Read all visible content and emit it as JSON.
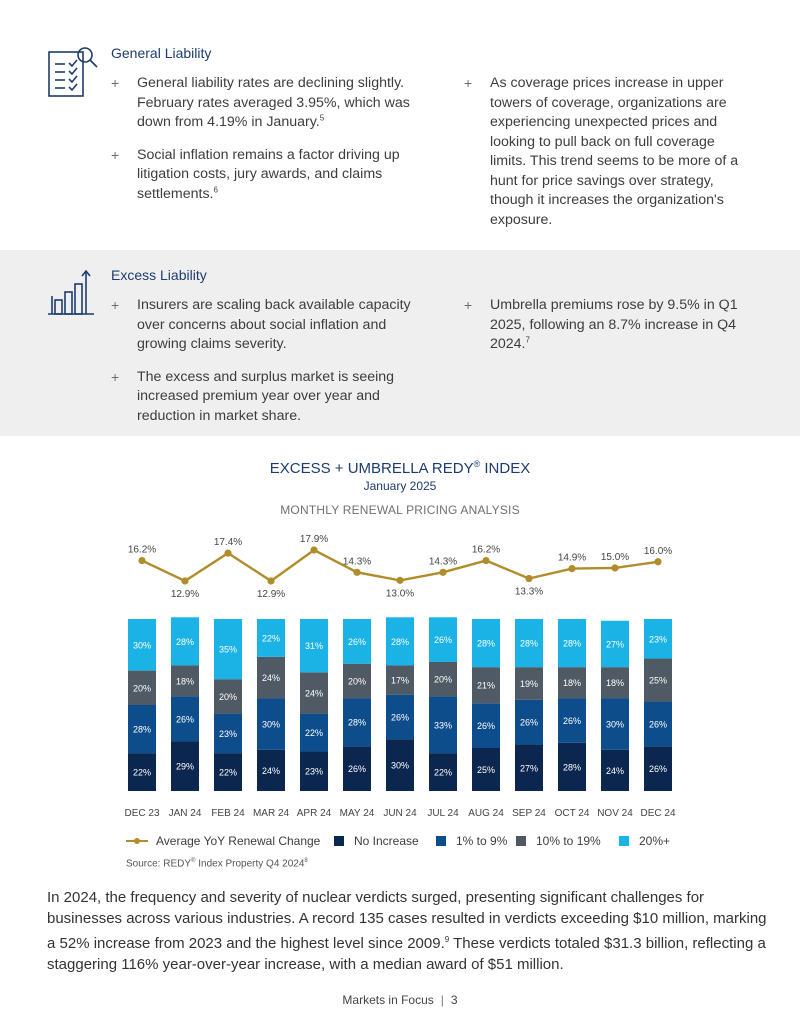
{
  "general_liability": {
    "title": "General Liability",
    "icon": "checklist-search-icon",
    "bullets_left": [
      {
        "text": "General liability rates are declining slightly. February rates averaged 3.95%, which was down from 4.19% in January.",
        "note": "5"
      },
      {
        "text": "Social inflation remains a factor driving up litigation costs, jury awards, and claims settlements.",
        "note": "6"
      }
    ],
    "bullets_right": [
      {
        "text": "As coverage prices increase in upper towers of coverage, organizations are experiencing unexpected prices and looking to pull back on full coverage limits. This trend seems to be more of a hunt for price savings over strategy, though it increases the organization's exposure.",
        "note": ""
      }
    ]
  },
  "excess_liability": {
    "title": "Excess Liability",
    "icon": "rising-bar-chart-icon",
    "bullets_left": [
      {
        "text": "Insurers are scaling back available capacity over concerns about social inflation and growing claims severity.",
        "note": ""
      },
      {
        "text": "The excess and surplus market is seeing increased premium year over year and reduction in market share.",
        "note": ""
      }
    ],
    "bullets_right": [
      {
        "text": "Umbrella premiums rose by 9.5% in Q1 2025, following an 8.7% increase in Q4 2024.",
        "note": "7"
      }
    ]
  },
  "bullet_marker": "+",
  "chart_header": {
    "title": "EXCESS + UMBRELLA REDY",
    "title_mark": "®",
    "title_suffix": " INDEX",
    "subtitle": "January 2025",
    "heading": "MONTHLY RENEWAL PRICING ANALYSIS"
  },
  "chart_data": {
    "type": "bar",
    "stacked": true,
    "categories": [
      "DEC 23",
      "JAN 24",
      "FEB 24",
      "MAR 24",
      "APR 24",
      "MAY 24",
      "JUN 24",
      "JUL 24",
      "AUG 24",
      "SEP 24",
      "OCT 24",
      "NOV 24",
      "DEC 24"
    ],
    "series": [
      {
        "name": "No Increase",
        "color": "#0b2750",
        "values": [
          22,
          29,
          22,
          24,
          23,
          26,
          30,
          22,
          25,
          27,
          28,
          24,
          26
        ]
      },
      {
        "name": "1% to 9%",
        "color": "#0e4d8c",
        "values": [
          28,
          26,
          23,
          30,
          22,
          28,
          26,
          33,
          26,
          26,
          26,
          30,
          26
        ]
      },
      {
        "name": "10% to 19%",
        "color": "#4f5a64",
        "values": [
          20,
          18,
          20,
          24,
          24,
          20,
          17,
          20,
          21,
          19,
          18,
          18,
          25
        ]
      },
      {
        "name": "20%+",
        "color": "#1bb2e5",
        "values": [
          30,
          28,
          35,
          22,
          31,
          26,
          28,
          26,
          28,
          28,
          28,
          27,
          23
        ]
      }
    ],
    "line": {
      "name": "Average YoY Renewal Change",
      "color": "#b08d2a",
      "values": [
        16.2,
        12.9,
        17.4,
        12.9,
        17.9,
        14.3,
        13.0,
        14.3,
        16.2,
        13.3,
        14.9,
        15.0,
        16.0
      ],
      "labels": [
        "16.2%",
        "12.9%",
        "17.4%",
        "12.9%",
        "17.9%",
        "14.3%",
        "13.0%",
        "14.3%",
        "16.2%",
        "13.3%",
        "14.9%",
        "15.0%",
        "16.0%"
      ]
    },
    "legend_position": "bottom",
    "grid": false
  },
  "source": {
    "text": "Source: REDY",
    "mark": "®",
    "rest": " Index Property Q4 2024",
    "note": "8"
  },
  "body_paragraph": {
    "part1": "In 2024, the frequency and severity of nuclear verdicts surged, presenting significant challenges for businesses across various industries. A record 135 cases resulted in verdicts exceeding $10 million, marking a 52% increase from 2023 and the highest level since 2009.",
    "note": "9",
    "part2": " These verdicts totaled $31.3 billion, reflecting a staggering 116% year-over-year increase, with a median award of $51 million."
  },
  "footer": {
    "text": "Markets in Focus",
    "separator": "|",
    "page": "3"
  }
}
